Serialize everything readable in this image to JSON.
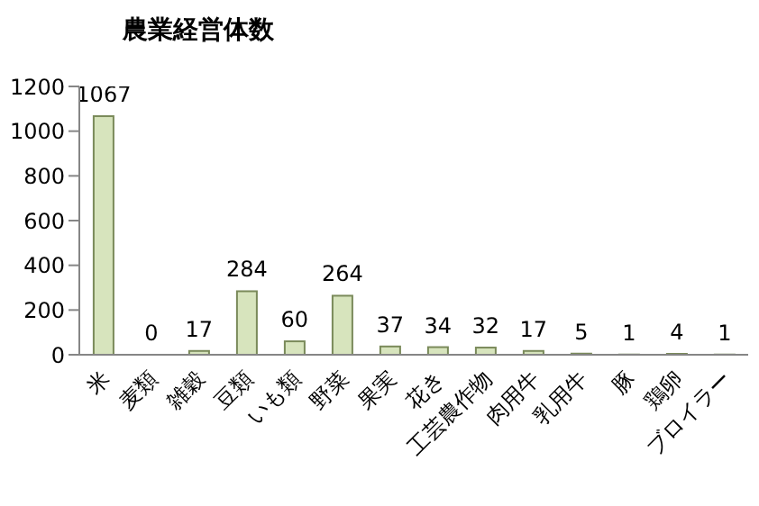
{
  "chart_data": {
    "type": "bar",
    "title": "農業経営体数",
    "categories": [
      "米",
      "麦類",
      "雑穀",
      "豆類",
      "いも類",
      "野菜",
      "果実",
      "花き",
      "工芸農作物",
      "肉用牛",
      "乳用牛",
      "豚",
      "鶏卵",
      "ブロイラー"
    ],
    "values": [
      1067,
      0,
      17,
      284,
      60,
      264,
      37,
      34,
      32,
      17,
      5,
      1,
      4,
      1
    ],
    "color": "#d7e4bd",
    "ylim": [
      0,
      1200
    ],
    "yticks": [
      0,
      200,
      400,
      600,
      800,
      1000,
      1200
    ],
    "grid": false,
    "data_labels": true
  }
}
